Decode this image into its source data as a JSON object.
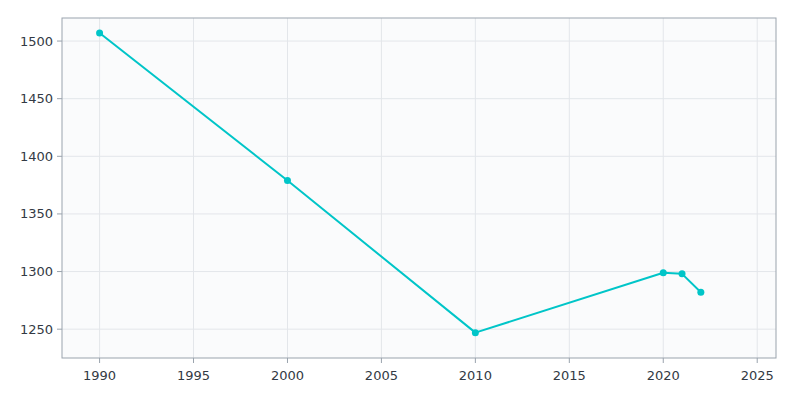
{
  "chart_data": {
    "type": "line",
    "x": [
      1990,
      2000,
      2010,
      2020,
      2021,
      2022
    ],
    "values": [
      1507,
      1379,
      1247,
      1299,
      1298,
      1282
    ],
    "color": "#00C5C8",
    "marker": "circle",
    "xlim": [
      1988,
      2026
    ],
    "ylim": [
      1225,
      1520
    ],
    "xticks": [
      1990,
      1995,
      2000,
      2005,
      2010,
      2015,
      2020,
      2025
    ],
    "yticks": [
      1250,
      1300,
      1350,
      1400,
      1450,
      1500
    ],
    "grid": true
  }
}
